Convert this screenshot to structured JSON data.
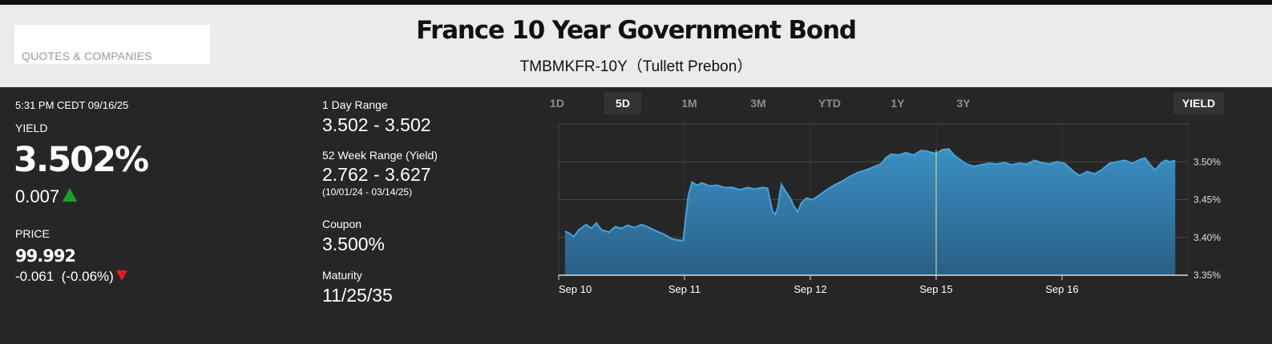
{
  "header": {
    "quotes_link": "QUOTES & COMPANIES",
    "title": "France 10 Year Government Bond",
    "subtitle": "TMBMKFR-10Y（Tullett Prebon）"
  },
  "quote": {
    "timestamp": "5:31 PM CEDT 09/16/25",
    "yield_label": "YIELD",
    "yield_value": "3.502%",
    "yield_change": "0.007",
    "yield_direction": "up",
    "price_label": "PRICE",
    "price_value": "99.992",
    "price_change": "-0.061  (-0.06%)",
    "price_direction": "down"
  },
  "stats": {
    "day_range_label": "1 Day Range",
    "day_range_value": "3.502 - 3.502",
    "week52_label": "52 Week Range (Yield)",
    "week52_value": "2.762 - 3.627",
    "week52_dates": "(10/01/24 - 03/14/25)",
    "coupon_label": "Coupon",
    "coupon_value": "3.500%",
    "maturity_label": "Maturity",
    "maturity_value": "11/25/35"
  },
  "range_tabs": [
    "1D",
    "5D",
    "1M",
    "3M",
    "YTD",
    "1Y",
    "3Y"
  ],
  "active_tab": "5D",
  "yield_toggle": "YIELD",
  "colors": {
    "up": "#1aa025",
    "down": "#e41b1b",
    "line": "#45a3dc",
    "fill_top": "#3a8fc2",
    "fill_bottom": "#2a5f86",
    "crosshair": "#e0e88a"
  },
  "chart_data": {
    "type": "area",
    "x_ticks": [
      "Sep 10",
      "Sep 11",
      "Sep 12",
      "Sep 15",
      "Sep 16"
    ],
    "y_ticks": [
      "3.35%",
      "3.40%",
      "3.45%",
      "3.50%"
    ],
    "ylim": [
      3.35,
      3.55
    ],
    "xlim": [
      0,
      5
    ],
    "grid": true,
    "crosshair_x": 3.0,
    "series": [
      {
        "points": [
          [
            0.05,
            3.408
          ],
          [
            0.08,
            3.406
          ],
          [
            0.12,
            3.401
          ],
          [
            0.16,
            3.41
          ],
          [
            0.22,
            3.417
          ],
          [
            0.26,
            3.412
          ],
          [
            0.3,
            3.419
          ],
          [
            0.34,
            3.41
          ],
          [
            0.4,
            3.407
          ],
          [
            0.45,
            3.414
          ],
          [
            0.5,
            3.412
          ],
          [
            0.55,
            3.416
          ],
          [
            0.6,
            3.413
          ],
          [
            0.66,
            3.417
          ],
          [
            0.72,
            3.413
          ],
          [
            0.78,
            3.408
          ],
          [
            0.84,
            3.404
          ],
          [
            0.9,
            3.398
          ],
          [
            0.96,
            3.396
          ],
          [
            0.99,
            3.396
          ],
          [
            1.03,
            3.455
          ],
          [
            1.06,
            3.473
          ],
          [
            1.1,
            3.469
          ],
          [
            1.14,
            3.472
          ],
          [
            1.2,
            3.468
          ],
          [
            1.26,
            3.469
          ],
          [
            1.32,
            3.466
          ],
          [
            1.38,
            3.466
          ],
          [
            1.44,
            3.463
          ],
          [
            1.5,
            3.466
          ],
          [
            1.56,
            3.464
          ],
          [
            1.62,
            3.466
          ],
          [
            1.66,
            3.465
          ],
          [
            1.7,
            3.434
          ],
          [
            1.72,
            3.43
          ],
          [
            1.74,
            3.439
          ],
          [
            1.77,
            3.47
          ],
          [
            1.8,
            3.462
          ],
          [
            1.84,
            3.452
          ],
          [
            1.87,
            3.441
          ],
          [
            1.9,
            3.434
          ],
          [
            1.93,
            3.446
          ],
          [
            1.97,
            3.452
          ],
          [
            2.02,
            3.45
          ],
          [
            2.08,
            3.457
          ],
          [
            2.14,
            3.464
          ],
          [
            2.2,
            3.47
          ],
          [
            2.26,
            3.475
          ],
          [
            2.32,
            3.481
          ],
          [
            2.38,
            3.486
          ],
          [
            2.44,
            3.489
          ],
          [
            2.5,
            3.493
          ],
          [
            2.56,
            3.497
          ],
          [
            2.6,
            3.505
          ],
          [
            2.64,
            3.51
          ],
          [
            2.7,
            3.509
          ],
          [
            2.76,
            3.512
          ],
          [
            2.82,
            3.509
          ],
          [
            2.88,
            3.515
          ],
          [
            2.93,
            3.514
          ],
          [
            2.97,
            3.512
          ],
          [
            3.0,
            3.511
          ],
          [
            3.05,
            3.516
          ],
          [
            3.1,
            3.517
          ],
          [
            3.14,
            3.509
          ],
          [
            3.18,
            3.504
          ],
          [
            3.24,
            3.497
          ],
          [
            3.3,
            3.494
          ],
          [
            3.36,
            3.496
          ],
          [
            3.42,
            3.498
          ],
          [
            3.48,
            3.497
          ],
          [
            3.54,
            3.499
          ],
          [
            3.6,
            3.496
          ],
          [
            3.66,
            3.498
          ],
          [
            3.72,
            3.497
          ],
          [
            3.78,
            3.502
          ],
          [
            3.84,
            3.499
          ],
          [
            3.9,
            3.497
          ],
          [
            3.96,
            3.5
          ],
          [
            4.02,
            3.498
          ],
          [
            4.06,
            3.492
          ],
          [
            4.1,
            3.486
          ],
          [
            4.14,
            3.482
          ],
          [
            4.2,
            3.487
          ],
          [
            4.26,
            3.484
          ],
          [
            4.32,
            3.49
          ],
          [
            4.38,
            3.498
          ],
          [
            4.44,
            3.5
          ],
          [
            4.5,
            3.502
          ],
          [
            4.56,
            3.498
          ],
          [
            4.62,
            3.503
          ],
          [
            4.66,
            3.505
          ],
          [
            4.7,
            3.496
          ],
          [
            4.74,
            3.489
          ],
          [
            4.78,
            3.497
          ],
          [
            4.82,
            3.502
          ],
          [
            4.86,
            3.5
          ],
          [
            4.9,
            3.502
          ]
        ]
      }
    ]
  }
}
